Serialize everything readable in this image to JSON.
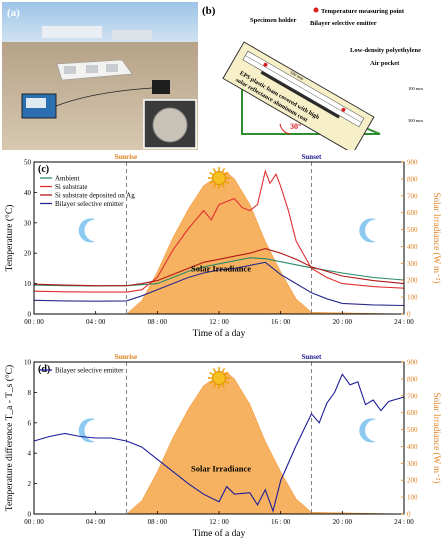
{
  "panel_a": {
    "label": "(a)"
  },
  "panel_b": {
    "label": "(b)",
    "legend_temperature_point": "Temperature measuring point",
    "specimen_holder": "Specimen holder",
    "bilayer_emitter": "Bilayer selective emitter",
    "ldpe": "Low-density polyethylene",
    "air_pocket": "Air pocket",
    "eps_line1": "EPS plastic foam covered with high",
    "eps_line2": "solar reflectance aluminum coat",
    "angle": "30°",
    "dim_top": "500 mm",
    "dim_side1": "100 mm",
    "dim_side2": "300 mm"
  },
  "chart_data": [
    {
      "panel": "(c)",
      "type": "line",
      "xlabel": "Time of a day",
      "ylabel": "Temperature (°C)",
      "y2label": "Solar Irradiance (W m⁻²)",
      "xlim": [
        0,
        24
      ],
      "ylim": [
        0,
        50
      ],
      "y2lim": [
        0,
        900
      ],
      "xticks": [
        "00 : 00",
        "04 : 00",
        "08 : 00",
        "12 : 00",
        "16 : 00",
        "20 : 00",
        "24 : 00"
      ],
      "yticks": [
        "0",
        "10",
        "20",
        "30",
        "40",
        "50"
      ],
      "y2ticks": [
        "0",
        "100",
        "200",
        "300",
        "400",
        "500",
        "600",
        "700",
        "800",
        "900"
      ],
      "annotations": {
        "sunrise": "Sunrise",
        "sunset": "Sunset",
        "irradiance": "Solar Irradiance"
      },
      "sunrise_x": 6,
      "sunset_x": 18,
      "series": [
        {
          "name": "Ambient",
          "color": "#2a8a6a",
          "x": [
            0,
            2,
            4,
            6,
            8,
            9,
            10,
            11,
            12,
            13,
            14,
            15,
            16,
            17,
            18,
            20,
            22,
            24
          ],
          "y": [
            9.5,
            9.3,
            9.2,
            9.3,
            10,
            12,
            14,
            15.5,
            16.5,
            17.5,
            18.5,
            18.2,
            17.2,
            16.2,
            15.2,
            13.5,
            12,
            11.2
          ]
        },
        {
          "name": "Si substrate",
          "color": "#e03030",
          "x": [
            0,
            2,
            4,
            6,
            7,
            8,
            9,
            10,
            11,
            11.5,
            12,
            12.5,
            13,
            13.5,
            14,
            14.5,
            15,
            15.3,
            15.7,
            16,
            16.5,
            17,
            18,
            19,
            20,
            22,
            24
          ],
          "y": [
            7.5,
            7.3,
            7.2,
            7.2,
            8,
            12,
            21,
            28,
            34,
            31,
            36,
            37,
            38,
            35,
            34,
            36,
            47,
            43,
            46,
            42,
            34,
            24,
            15,
            12,
            10,
            9,
            8.5
          ]
        },
        {
          "name": "Si substrate deposited on Ag",
          "color": "#b01818",
          "x": [
            0,
            2,
            4,
            6,
            7,
            8,
            9,
            10,
            11,
            12,
            13,
            14,
            15,
            16,
            17,
            18,
            19,
            20,
            22,
            24
          ],
          "y": [
            9.8,
            9.5,
            9.3,
            9.3,
            10,
            11,
            13,
            15,
            17,
            18,
            19,
            20,
            21.5,
            20,
            18,
            15.5,
            14,
            12.5,
            11,
            10
          ]
        },
        {
          "name": "Bilayer selective emitter",
          "color": "#2b2b8f",
          "x": [
            0,
            2,
            4,
            6,
            7,
            8,
            9,
            10,
            11,
            12,
            13,
            14,
            15,
            15.5,
            16,
            17,
            18,
            19,
            20,
            22,
            24
          ],
          "y": [
            4.5,
            4.3,
            4.2,
            4.3,
            6,
            8,
            10,
            12,
            13.5,
            14.5,
            15,
            16,
            17,
            15,
            13,
            10,
            7,
            5,
            3.5,
            3,
            2.8
          ]
        }
      ],
      "irradiance": {
        "name": "Solar Irradiance",
        "color": "#f5a444",
        "x": [
          0,
          6,
          7,
          8,
          9,
          10,
          11,
          12,
          12.5,
          13,
          14,
          15,
          16,
          17,
          18,
          24
        ],
        "y": [
          0,
          0,
          80,
          250,
          450,
          620,
          760,
          820,
          840,
          800,
          650,
          430,
          250,
          90,
          10,
          0
        ]
      }
    },
    {
      "panel": "(d)",
      "type": "line",
      "xlabel": "Time of a day",
      "ylabel": "Temperature difference T_a - T_s (°C)",
      "y2label": "Solar Irradiance (W m⁻²)",
      "xlim": [
        0,
        24
      ],
      "ylim": [
        0,
        10
      ],
      "y2lim": [
        0,
        900
      ],
      "xticks": [
        "00 : 00",
        "04 : 00",
        "08 : 00",
        "12 : 00",
        "16 : 00",
        "20 : 00",
        "24 : 00"
      ],
      "yticks": [
        "0",
        "2",
        "4",
        "6",
        "8",
        "10"
      ],
      "y2ticks": [
        "0",
        "100",
        "200",
        "300",
        "400",
        "500",
        "600",
        "700",
        "800",
        "900"
      ],
      "annotations": {
        "sunrise": "Sunrise",
        "sunset": "Sunset",
        "irradiance": "Solar Irradiance"
      },
      "sunrise_x": 6,
      "sunset_x": 18,
      "series": [
        {
          "name": "Bilayer selective emitter",
          "color": "#1e1e9a",
          "x": [
            0,
            1,
            2,
            3,
            4,
            5,
            6,
            7,
            8,
            9,
            10,
            11,
            12,
            12.5,
            13,
            14,
            14.5,
            15,
            15.5,
            16,
            17,
            18,
            18.5,
            19,
            19.5,
            20,
            20.5,
            21,
            21.5,
            22,
            22.5,
            23,
            24
          ],
          "y": [
            4.8,
            5.1,
            5.3,
            5.1,
            5.0,
            5.0,
            4.8,
            4.4,
            3.6,
            2.8,
            2.0,
            1.3,
            0.8,
            1.8,
            1.3,
            1.4,
            0.6,
            1.6,
            0.2,
            2.2,
            4.5,
            6.6,
            6.0,
            7.3,
            8.0,
            9.2,
            8.5,
            8.7,
            7.2,
            7.5,
            6.8,
            7.4,
            7.7
          ]
        }
      ],
      "irradiance": {
        "name": "Solar Irradiance",
        "color": "#f5a444",
        "x": [
          0,
          6,
          7,
          8,
          9,
          10,
          11,
          12,
          12.5,
          13,
          14,
          15,
          16,
          17,
          18,
          24
        ],
        "y": [
          0,
          0,
          80,
          250,
          450,
          620,
          760,
          820,
          840,
          800,
          650,
          430,
          250,
          90,
          10,
          0
        ]
      }
    }
  ]
}
